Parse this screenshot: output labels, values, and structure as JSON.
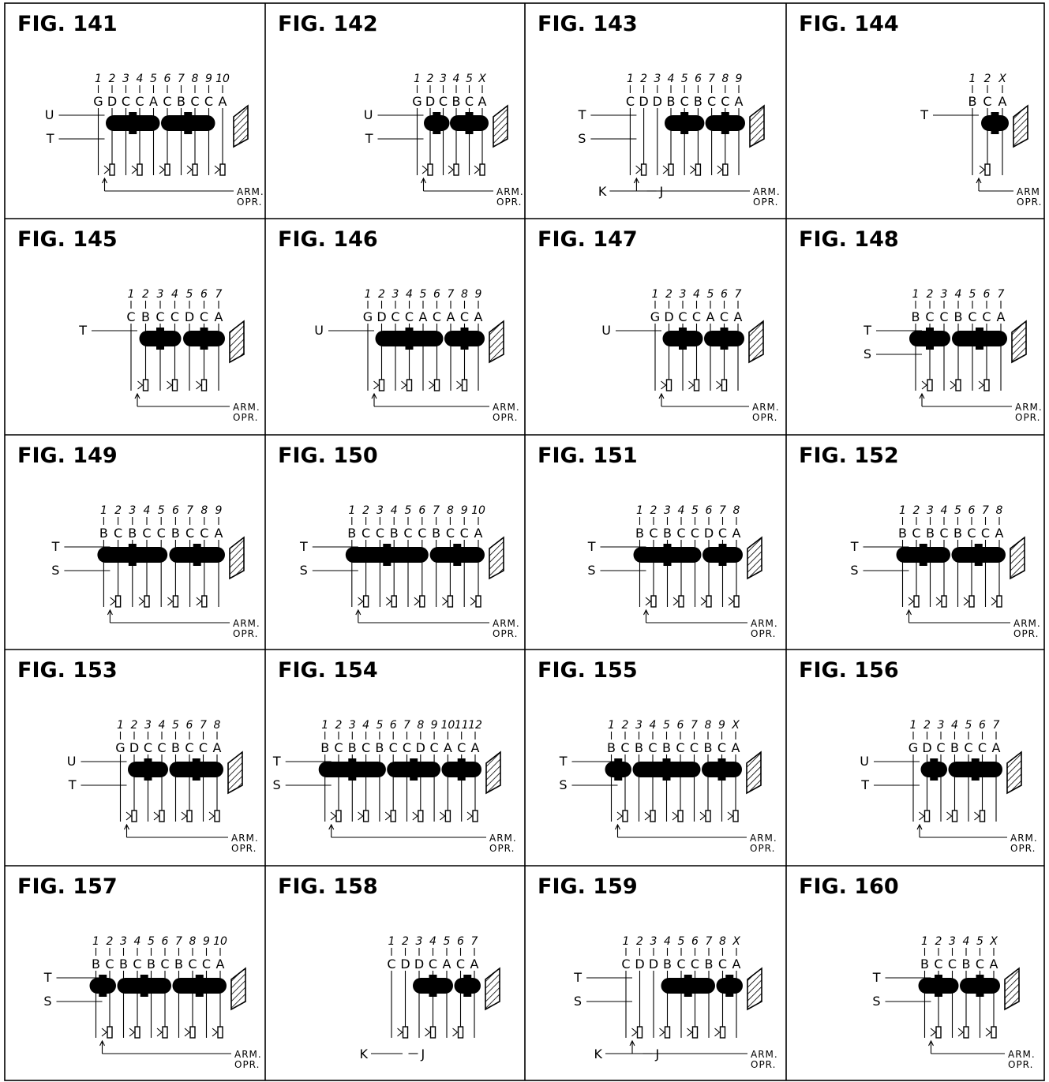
{
  "figures": [
    {
      "title": "FIG. 141",
      "nums": [
        "1",
        "2",
        "3",
        "4",
        "5",
        "6",
        "7",
        "8",
        "9",
        "10"
      ],
      "letters": [
        "G",
        "D",
        "C",
        "C",
        "A",
        "C",
        "B",
        "C",
        "C",
        "A"
      ],
      "side_labels": [
        "U",
        "T"
      ],
      "slabs": [
        [
          1,
          4
        ],
        [
          5,
          8
        ]
      ],
      "arm": [
        "ARM.",
        "OPR."
      ]
    },
    {
      "title": "FIG. 142",
      "nums": [
        "1",
        "2",
        "3",
        "4",
        "5",
        "X"
      ],
      "letters": [
        "G",
        "D",
        "C",
        "B",
        "C",
        "A"
      ],
      "side_labels": [
        "U",
        "T"
      ],
      "slabs": [
        [
          1,
          2
        ],
        [
          3,
          5
        ]
      ],
      "arm": [
        "ARM.",
        "OPR."
      ]
    },
    {
      "title": "FIG. 143",
      "nums": [
        "1",
        "2",
        "3",
        "4",
        "5",
        "6",
        "7",
        "8",
        "9"
      ],
      "letters": [
        "C",
        "D",
        "D",
        "B",
        "C",
        "B",
        "C",
        "C",
        "A"
      ],
      "side_labels": [
        "T",
        "S"
      ],
      "slabs": [
        [
          3,
          5
        ],
        [
          6,
          8
        ]
      ],
      "arm": [
        "ARM.",
        "OPR."
      ],
      "extra": [
        "K",
        "J"
      ]
    },
    {
      "title": "FIG. 144",
      "nums": [
        "1",
        "2",
        "X"
      ],
      "letters": [
        "B",
        "C",
        "A"
      ],
      "side_labels": [
        "T"
      ],
      "slabs": [
        [
          1,
          2
        ]
      ],
      "arm": [
        "ARM",
        "OPR."
      ]
    },
    {
      "title": "FIG. 145",
      "nums": [
        "1",
        "2",
        "3",
        "4",
        "5",
        "6",
        "7"
      ],
      "letters": [
        "C",
        "B",
        "C",
        "C",
        "D",
        "C",
        "A"
      ],
      "side_labels": [
        "T"
      ],
      "slabs": [
        [
          1,
          3
        ],
        [
          4,
          6
        ]
      ],
      "arm": [
        "ARM.",
        "OPR."
      ]
    },
    {
      "title": "FIG. 146",
      "nums": [
        "1",
        "2",
        "3",
        "4",
        "5",
        "6",
        "7",
        "8",
        "9"
      ],
      "letters": [
        "G",
        "D",
        "C",
        "C",
        "A",
        "C",
        "A",
        "C",
        "A"
      ],
      "side_labels": [
        "U"
      ],
      "slabs": [
        [
          1,
          5
        ],
        [
          6,
          8
        ]
      ],
      "arm": [
        "ARM.",
        "OPR."
      ]
    },
    {
      "title": "FIG. 147",
      "nums": [
        "1",
        "2",
        "3",
        "4",
        "5",
        "6",
        "7"
      ],
      "letters": [
        "G",
        "D",
        "C",
        "C",
        "A",
        "C",
        "A"
      ],
      "side_labels": [
        "U"
      ],
      "slabs": [
        [
          1,
          3
        ],
        [
          4,
          6
        ]
      ],
      "arm": [
        "ARM.",
        "OPR."
      ]
    },
    {
      "title": "FIG. 148",
      "nums": [
        "1",
        "2",
        "3",
        "4",
        "5",
        "6",
        "7"
      ],
      "letters": [
        "B",
        "C",
        "C",
        "B",
        "C",
        "C",
        "A"
      ],
      "side_labels": [
        "T",
        "S"
      ],
      "slabs": [
        [
          0,
          2
        ],
        [
          3,
          6
        ]
      ],
      "arm": [
        "ARM.",
        "OPR."
      ]
    },
    {
      "title": "FIG. 149",
      "nums": [
        "1",
        "2",
        "3",
        "4",
        "5",
        "6",
        "7",
        "8",
        "9"
      ],
      "letters": [
        "B",
        "C",
        "B",
        "C",
        "C",
        "B",
        "C",
        "C",
        "A"
      ],
      "side_labels": [
        "T",
        "S"
      ],
      "slabs": [
        [
          0,
          4
        ],
        [
          5,
          8
        ]
      ],
      "arm": [
        "ARM.",
        "OPR."
      ]
    },
    {
      "title": "FIG. 150",
      "nums": [
        "1",
        "2",
        "3",
        "4",
        "5",
        "6",
        "7",
        "8",
        "9",
        "10"
      ],
      "letters": [
        "B",
        "C",
        "C",
        "B",
        "C",
        "C",
        "B",
        "C",
        "C",
        "A"
      ],
      "side_labels": [
        "T",
        "S"
      ],
      "slabs": [
        [
          0,
          5
        ],
        [
          6,
          9
        ]
      ],
      "arm": [
        "ARM.",
        "OPR."
      ]
    },
    {
      "title": "FIG. 151",
      "nums": [
        "1",
        "2",
        "3",
        "4",
        "5",
        "6",
        "7",
        "8"
      ],
      "letters": [
        "B",
        "C",
        "B",
        "C",
        "C",
        "D",
        "C",
        "A"
      ],
      "side_labels": [
        "T",
        "S"
      ],
      "slabs": [
        [
          0,
          4
        ],
        [
          5,
          7
        ]
      ],
      "arm": [
        "ARM.",
        "OPR."
      ]
    },
    {
      "title": "FIG. 152",
      "nums": [
        "1",
        "2",
        "3",
        "4",
        "5",
        "6",
        "7",
        "8"
      ],
      "letters": [
        "B",
        "C",
        "B",
        "C",
        "B",
        "C",
        "C",
        "A"
      ],
      "side_labels": [
        "T",
        "S"
      ],
      "slabs": [
        [
          0,
          3
        ],
        [
          4,
          7
        ]
      ],
      "arm": [
        "ARM.",
        "OPR."
      ]
    },
    {
      "title": "FIG. 153",
      "nums": [
        "1",
        "2",
        "3",
        "4",
        "5",
        "6",
        "7",
        "8"
      ],
      "letters": [
        "G",
        "D",
        "C",
        "C",
        "B",
        "C",
        "C",
        "A"
      ],
      "side_labels": [
        "U",
        "T"
      ],
      "slabs": [
        [
          1,
          3
        ],
        [
          4,
          7
        ]
      ],
      "arm": [
        "ARM.",
        "OPR."
      ]
    },
    {
      "title": "FIG. 154",
      "nums": [
        "1",
        "2",
        "3",
        "4",
        "5",
        "6",
        "7",
        "8",
        "9",
        "10",
        "11",
        "12"
      ],
      "letters": [
        "B",
        "C",
        "B",
        "C",
        "B",
        "C",
        "C",
        "D",
        "C",
        "A",
        "C",
        "A"
      ],
      "side_labels": [
        "T",
        "S"
      ],
      "slabs": [
        [
          0,
          4
        ],
        [
          5,
          8
        ],
        [
          9,
          11
        ]
      ],
      "arm": [
        "ARM.",
        "OPR."
      ]
    },
    {
      "title": "FIG. 155",
      "nums": [
        "1",
        "2",
        "3",
        "4",
        "5",
        "6",
        "7",
        "8",
        "9",
        "X"
      ],
      "letters": [
        "B",
        "C",
        "B",
        "C",
        "B",
        "C",
        "C",
        "B",
        "C",
        "A"
      ],
      "side_labels": [
        "T",
        "S"
      ],
      "slabs": [
        [
          0,
          1
        ],
        [
          2,
          6
        ],
        [
          7,
          9
        ]
      ],
      "arm": [
        "ARM.",
        "OPR."
      ]
    },
    {
      "title": "FIG. 156",
      "nums": [
        "1",
        "2",
        "3",
        "4",
        "5",
        "6",
        "7"
      ],
      "letters": [
        "G",
        "D",
        "C",
        "B",
        "C",
        "C",
        "A"
      ],
      "side_labels": [
        "U",
        "T"
      ],
      "slabs": [
        [
          1,
          2
        ],
        [
          3,
          6
        ]
      ],
      "arm": [
        "ARM.",
        "OPR."
      ]
    },
    {
      "title": "FIG. 157",
      "nums": [
        "1",
        "2",
        "3",
        "4",
        "5",
        "6",
        "7",
        "8",
        "9",
        "10"
      ],
      "letters": [
        "B",
        "C",
        "B",
        "C",
        "B",
        "C",
        "B",
        "C",
        "C",
        "A"
      ],
      "side_labels": [
        "T",
        "S"
      ],
      "slabs": [
        [
          0,
          1
        ],
        [
          2,
          5
        ],
        [
          6,
          9
        ]
      ],
      "arm": [
        "ARM.",
        "OPR."
      ]
    },
    {
      "title": "FIG. 158",
      "nums": [
        "1",
        "2",
        "3",
        "4",
        "5",
        "6",
        "7"
      ],
      "letters": [
        "C",
        "D",
        "D",
        "C",
        "A",
        "C",
        "A"
      ],
      "side_labels": [],
      "slabs": [
        [
          2,
          4
        ],
        [
          5,
          6
        ]
      ],
      "arm": [],
      "extra": [
        "K",
        "J"
      ]
    },
    {
      "title": "FIG. 159",
      "nums": [
        "1",
        "2",
        "3",
        "4",
        "5",
        "6",
        "7",
        "8",
        "X"
      ],
      "letters": [
        "C",
        "D",
        "D",
        "B",
        "C",
        "C",
        "B",
        "C",
        "A"
      ],
      "side_labels": [
        "T",
        "S"
      ],
      "slabs": [
        [
          3,
          6
        ],
        [
          7,
          8
        ]
      ],
      "arm": [
        "ARM.",
        "OPR."
      ],
      "extra": [
        "K",
        "J"
      ]
    },
    {
      "title": "FIG. 160",
      "nums": [
        "1",
        "2",
        "3",
        "4",
        "5",
        "X"
      ],
      "letters": [
        "B",
        "C",
        "C",
        "B",
        "C",
        "A"
      ],
      "side_labels": [
        "T",
        "S"
      ],
      "slabs": [
        [
          0,
          2
        ],
        [
          3,
          5
        ]
      ],
      "arm": [
        "ARM.",
        "OPR."
      ]
    }
  ]
}
